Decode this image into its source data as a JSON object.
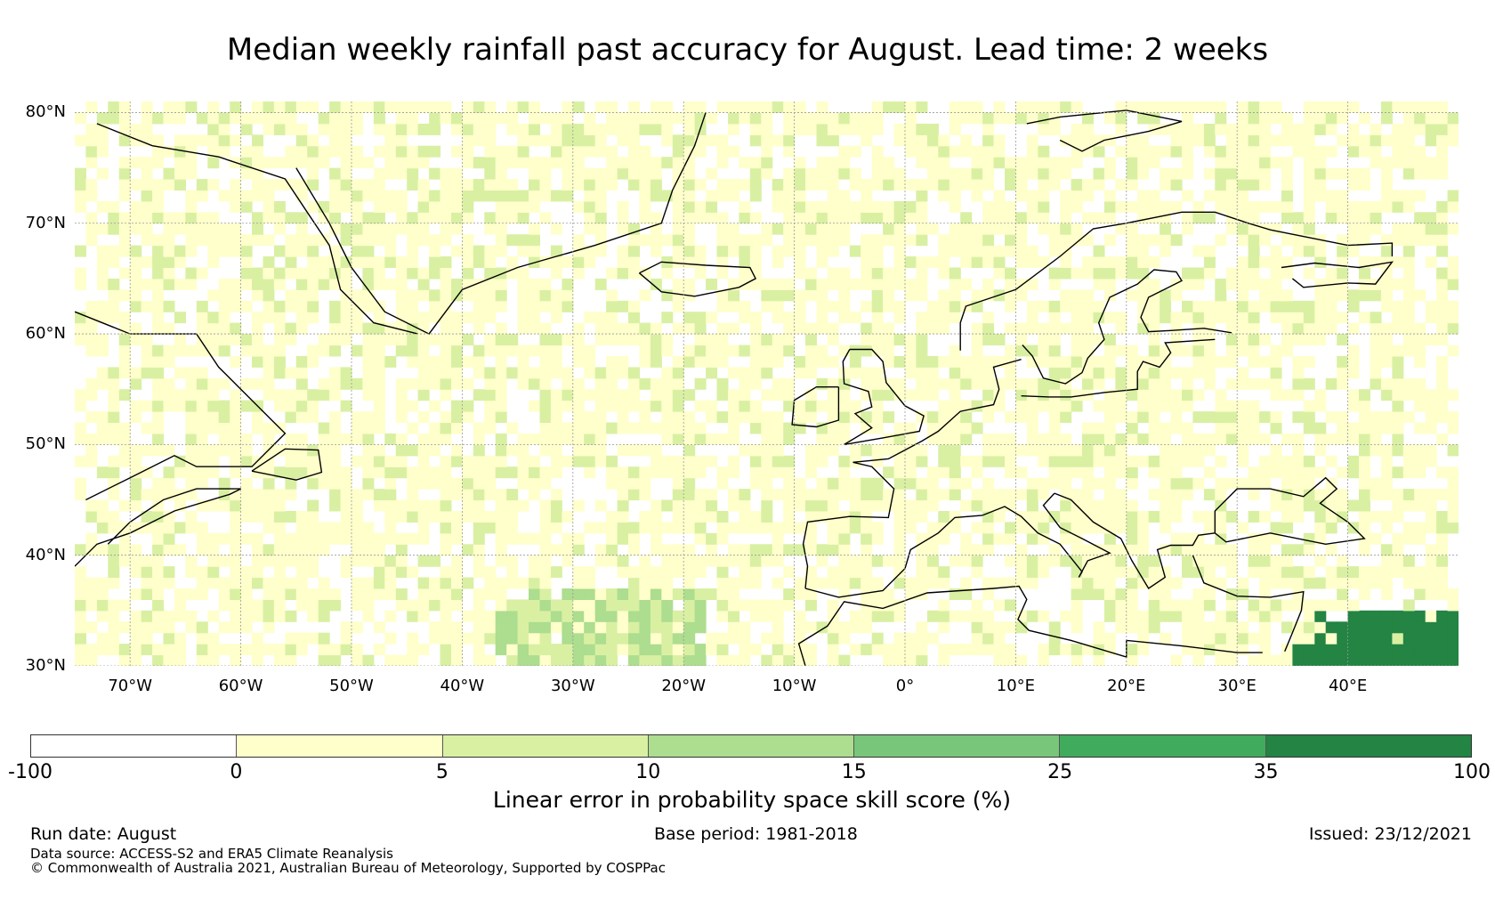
{
  "title": "Median weekly rainfall past accuracy for August. Lead time: 2 weeks",
  "map": {
    "lon_range": [
      -75,
      50
    ],
    "lat_range": [
      30,
      81
    ],
    "lat_labels": [
      "80°N",
      "70°N",
      "60°N",
      "50°N",
      "40°N",
      "30°N"
    ],
    "lat_values": [
      80,
      70,
      60,
      50,
      40,
      30
    ],
    "lon_labels": [
      "70°W",
      "60°W",
      "50°W",
      "40°W",
      "30°W",
      "20°W",
      "10°W",
      "0°",
      "10°E",
      "20°E",
      "30°E",
      "40°E"
    ],
    "lon_values": [
      -70,
      -60,
      -50,
      -40,
      -30,
      -20,
      -10,
      0,
      10,
      20,
      30,
      40
    ],
    "gridlines": true
  },
  "colorbar": {
    "ticks": [
      "-100",
      "0",
      "5",
      "10",
      "15",
      "25",
      "35",
      "100"
    ],
    "colors": [
      "#ffffff",
      "#ffffcc",
      "#d9f0a3",
      "#addd8e",
      "#78c679",
      "#41ab5d",
      "#238443"
    ],
    "label": "Linear error in probability space skill score (%)"
  },
  "footer": {
    "run_date": "Run date: August",
    "base_period": "Base period: 1981-2018",
    "issued": "Issued: 23/12/2021",
    "data_source": "Data source: ACCESS-S2 and ERA5 Climate Reanalysis",
    "copyright": "© Commonwealth of Australia 2021, Australian Bureau of Meteorology, Supported by COSPPac"
  }
}
